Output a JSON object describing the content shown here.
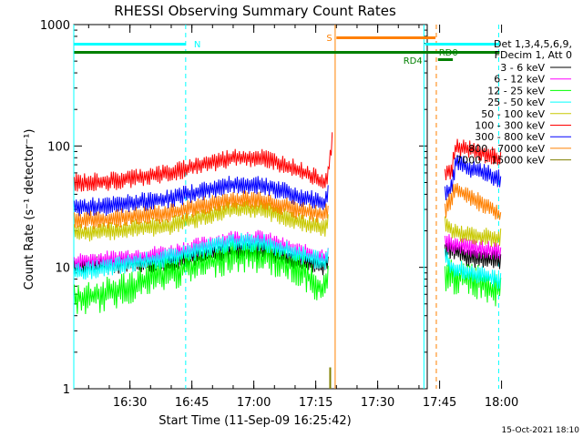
{
  "chart_data": {
    "type": "line",
    "title": "RHESSI Observing Summary Count Rates",
    "xlabel": "Start Time (11-Sep-09 16:25:42)",
    "ylabel": "Count Rate (s⁻¹ detector⁻¹)",
    "yscale": "log",
    "ylim": [
      1,
      1000
    ],
    "xlim_minutes": [
      16.4,
      102
    ],
    "x_ticks": [
      {
        "label": "16:30",
        "m": 30
      },
      {
        "label": "16:45",
        "m": 45
      },
      {
        "label": "17:00",
        "m": 60
      },
      {
        "label": "17:15",
        "m": 75
      },
      {
        "label": "17:30",
        "m": 90
      },
      {
        "label": "17:45",
        "m": 105
      },
      {
        "label": "18:00",
        "m": 120
      }
    ],
    "y_ticks": [
      {
        "label": "1",
        "v": 1
      },
      {
        "label": "10",
        "v": 10
      },
      {
        "label": "100",
        "v": 100
      },
      {
        "label": "1000",
        "v": 1000
      }
    ],
    "legend": {
      "header1": "Det 1,3,4,5,6,9,",
      "header2": "FDecim 1, Att 0",
      "position": "top-right"
    },
    "series": [
      {
        "name": "3 - 6 keV",
        "color": "#000000",
        "seg1": [
          [
            16.5,
            10
          ],
          [
            25,
            10.5
          ],
          [
            40,
            11
          ],
          [
            55,
            14
          ],
          [
            62,
            14
          ],
          [
            70,
            11.5
          ],
          [
            77,
            10
          ],
          [
            78,
            11
          ]
        ],
        "seg2": [
          [
            106.3,
            14
          ],
          [
            108,
            14
          ],
          [
            112,
            12
          ],
          [
            119,
            11.5
          ],
          [
            120,
            11.5
          ]
        ]
      },
      {
        "name": "6 - 12 keV",
        "color": "#ff00ff",
        "seg1": [
          [
            16.5,
            11
          ],
          [
            25,
            11.5
          ],
          [
            40,
            13
          ],
          [
            55,
            17
          ],
          [
            62,
            17
          ],
          [
            70,
            13.5
          ],
          [
            77,
            12
          ],
          [
            78,
            13
          ]
        ],
        "seg2": [
          [
            106.3,
            16
          ],
          [
            108,
            15.5
          ],
          [
            112,
            14.5
          ],
          [
            119,
            13.5
          ],
          [
            120,
            13.5
          ]
        ]
      },
      {
        "name": "12 - 25 keV",
        "color": "#00ff00",
        "seg1": [
          [
            16.5,
            5.5
          ],
          [
            25,
            6
          ],
          [
            40,
            9
          ],
          [
            55,
            12.5
          ],
          [
            62,
            12.5
          ],
          [
            70,
            10
          ],
          [
            76,
            7
          ],
          [
            77.5,
            6.5
          ],
          [
            78,
            8
          ]
        ],
        "seg2": [
          [
            106.3,
            9
          ],
          [
            108,
            8.5
          ],
          [
            112,
            8
          ],
          [
            119,
            6.5
          ],
          [
            120,
            6.5
          ]
        ]
      },
      {
        "name": "25 - 50 keV",
        "color": "#00ffff",
        "seg1": [
          [
            16.5,
            9
          ],
          [
            25,
            10
          ],
          [
            40,
            12
          ],
          [
            55,
            16
          ],
          [
            62,
            16
          ],
          [
            70,
            13
          ],
          [
            77,
            11
          ],
          [
            78,
            12
          ]
        ],
        "seg2": [
          [
            106.3,
            12
          ],
          [
            108,
            10
          ],
          [
            112,
            9
          ],
          [
            119,
            8
          ],
          [
            120,
            8
          ]
        ]
      },
      {
        "name": "50 - 100 keV",
        "color": "#c8c800",
        "seg1": [
          [
            16.5,
            19
          ],
          [
            25,
            20
          ],
          [
            40,
            22
          ],
          [
            55,
            30
          ],
          [
            62,
            30
          ],
          [
            70,
            24
          ],
          [
            77,
            21
          ],
          [
            78,
            23
          ]
        ],
        "seg2": [
          [
            106.3,
            22
          ],
          [
            108,
            20
          ],
          [
            112,
            18.5
          ],
          [
            119,
            17.5
          ],
          [
            120,
            17.5
          ]
        ]
      },
      {
        "name": "100 - 300 keV",
        "color": "#ff0000",
        "seg1": [
          [
            16.5,
            50
          ],
          [
            25,
            51
          ],
          [
            40,
            60
          ],
          [
            55,
            80
          ],
          [
            62,
            80
          ],
          [
            70,
            65
          ],
          [
            77,
            50
          ],
          [
            78,
            60
          ],
          [
            79,
            112
          ]
        ],
        "seg2": [
          [
            106.3,
            60
          ],
          [
            108,
            65
          ],
          [
            109,
            100
          ],
          [
            112,
            95
          ],
          [
            119,
            80
          ],
          [
            120,
            75
          ]
        ]
      },
      {
        "name": "300 - 800 keV",
        "color": "#0000ff",
        "seg1": [
          [
            16.5,
            31
          ],
          [
            25,
            32
          ],
          [
            40,
            37
          ],
          [
            55,
            48
          ],
          [
            62,
            48
          ],
          [
            70,
            39
          ],
          [
            77,
            34
          ],
          [
            78,
            40
          ]
        ],
        "seg2": [
          [
            106.3,
            40
          ],
          [
            108,
            45
          ],
          [
            109,
            75
          ],
          [
            112,
            65
          ],
          [
            119,
            55
          ],
          [
            120,
            50
          ]
        ]
      },
      {
        "name": "800 - 7000 keV",
        "color": "#ff8000",
        "seg1": [
          [
            16.5,
            24
          ],
          [
            25,
            25
          ],
          [
            40,
            28
          ],
          [
            55,
            36
          ],
          [
            62,
            36
          ],
          [
            70,
            30
          ],
          [
            77,
            27
          ],
          [
            78,
            30
          ]
        ],
        "seg2": [
          [
            106.3,
            30
          ],
          [
            107,
            32
          ],
          [
            109,
            45
          ],
          [
            112,
            38
          ],
          [
            119,
            28
          ],
          [
            120,
            26
          ]
        ]
      },
      {
        "name": "7000 - 15000 keV",
        "color": "#808000",
        "seg1": [],
        "seg2": [],
        "spikes": [
          [
            78.5,
            1.5
          ]
        ]
      }
    ],
    "flag_bars": [
      {
        "label": "N",
        "color": "#00ffff"
      },
      {
        "label": "S",
        "color": "#ff8000"
      },
      {
        "label": "RD4",
        "color": "#008000"
      },
      {
        "label": "RD0",
        "color": "#008000"
      }
    ],
    "footer_date": "15-Oct-2021 18:10"
  }
}
